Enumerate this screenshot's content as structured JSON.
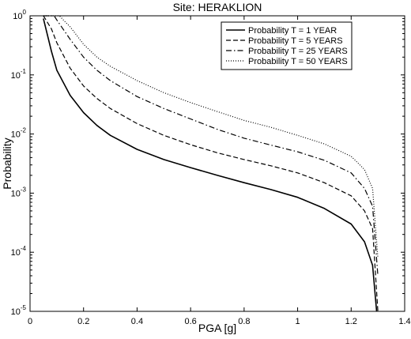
{
  "chart_data": {
    "type": "line",
    "title": "Site: HERAKLION",
    "xlabel": "PGA [g]",
    "ylabel": "Probability",
    "xlim": [
      0,
      1.4
    ],
    "ylim": [
      1e-05,
      1
    ],
    "yscale": "log",
    "grid": false,
    "legend_position": "top-right",
    "x_ticks": [
      0,
      0.2,
      0.4,
      0.6,
      0.8,
      1,
      1.2,
      1.4
    ],
    "x_tick_labels": [
      "0",
      "0.2",
      "0.4",
      "0.6",
      "0.8",
      "1",
      "1.2",
      "1.4"
    ],
    "y_ticks": [
      1e-05,
      0.0001,
      0.001,
      0.01,
      0.1,
      1
    ],
    "y_tick_bases": [
      "10",
      "10",
      "10",
      "10",
      "10",
      "10"
    ],
    "y_tick_exponents": [
      "-5",
      "-4",
      "-3",
      "-2",
      "-1",
      "0"
    ],
    "series": [
      {
        "name": "Probability T =  1 YEAR",
        "style": "solid",
        "color": "#000000",
        "points": [
          [
            0.05,
            0.9
          ],
          [
            0.08,
            0.25
          ],
          [
            0.1,
            0.12
          ],
          [
            0.15,
            0.045
          ],
          [
            0.2,
            0.023
          ],
          [
            0.25,
            0.014
          ],
          [
            0.3,
            0.0095
          ],
          [
            0.4,
            0.0055
          ],
          [
            0.5,
            0.0037
          ],
          [
            0.6,
            0.0027
          ],
          [
            0.7,
            0.002
          ],
          [
            0.8,
            0.0015
          ],
          [
            0.9,
            0.00115
          ],
          [
            1.0,
            0.00085
          ],
          [
            1.1,
            0.00055
          ],
          [
            1.2,
            0.0003
          ],
          [
            1.25,
            0.00015
          ],
          [
            1.28,
            6e-05
          ],
          [
            1.295,
            1e-05
          ]
        ]
      },
      {
        "name": "Probability T =  5 YEARS",
        "style": "dashed",
        "color": "#000000",
        "points": [
          [
            0.05,
            1.0
          ],
          [
            0.08,
            0.6
          ],
          [
            0.1,
            0.35
          ],
          [
            0.15,
            0.13
          ],
          [
            0.2,
            0.065
          ],
          [
            0.25,
            0.04
          ],
          [
            0.3,
            0.027
          ],
          [
            0.4,
            0.015
          ],
          [
            0.5,
            0.0095
          ],
          [
            0.6,
            0.0066
          ],
          [
            0.7,
            0.0048
          ],
          [
            0.8,
            0.0037
          ],
          [
            0.9,
            0.0029
          ],
          [
            1.0,
            0.0022
          ],
          [
            1.1,
            0.0015
          ],
          [
            1.2,
            0.0009
          ],
          [
            1.25,
            0.0005
          ],
          [
            1.28,
            0.00025
          ],
          [
            1.3,
            1e-05
          ]
        ]
      },
      {
        "name": "Probability T = 25 YEARS",
        "style": "dashdot",
        "color": "#000000",
        "points": [
          [
            0.05,
            1.0
          ],
          [
            0.09,
            1.0
          ],
          [
            0.1,
            0.85
          ],
          [
            0.15,
            0.4
          ],
          [
            0.2,
            0.2
          ],
          [
            0.25,
            0.12
          ],
          [
            0.3,
            0.08
          ],
          [
            0.4,
            0.043
          ],
          [
            0.5,
            0.027
          ],
          [
            0.6,
            0.018
          ],
          [
            0.7,
            0.012
          ],
          [
            0.8,
            0.0085
          ],
          [
            0.9,
            0.0065
          ],
          [
            1.0,
            0.005
          ],
          [
            1.1,
            0.0036
          ],
          [
            1.2,
            0.0022
          ],
          [
            1.25,
            0.0012
          ],
          [
            1.28,
            0.0006
          ],
          [
            1.3,
            4e-05
          ]
        ]
      },
      {
        "name": "Probability T = 50 YEARS",
        "style": "dotted",
        "color": "#000000",
        "points": [
          [
            0.05,
            1.0
          ],
          [
            0.11,
            1.0
          ],
          [
            0.13,
            0.8
          ],
          [
            0.15,
            0.65
          ],
          [
            0.2,
            0.33
          ],
          [
            0.25,
            0.2
          ],
          [
            0.3,
            0.14
          ],
          [
            0.4,
            0.08
          ],
          [
            0.5,
            0.05
          ],
          [
            0.6,
            0.034
          ],
          [
            0.7,
            0.024
          ],
          [
            0.8,
            0.017
          ],
          [
            0.9,
            0.013
          ],
          [
            1.0,
            0.0095
          ],
          [
            1.1,
            0.0068
          ],
          [
            1.2,
            0.0042
          ],
          [
            1.25,
            0.0025
          ],
          [
            1.28,
            0.0012
          ],
          [
            1.3,
            8e-05
          ]
        ]
      }
    ]
  }
}
